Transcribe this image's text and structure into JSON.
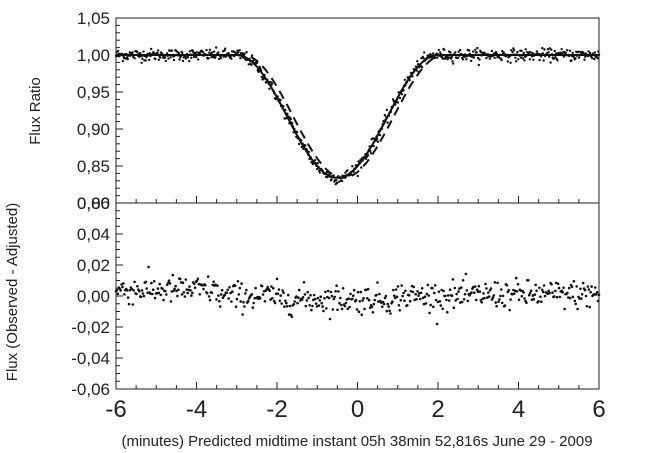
{
  "chart_data": [
    {
      "type": "scatter",
      "title": "",
      "ylabel": "Flux Ratio",
      "xlabel": "",
      "xlim": [
        -6,
        6
      ],
      "ylim": [
        0.8,
        1.05
      ],
      "y_ticks": [
        "0,80",
        "0,85",
        "0,90",
        "0,95",
        "1,00",
        "1,05"
      ],
      "y_tick_values": [
        0.8,
        0.85,
        0.9,
        0.95,
        1.0,
        1.05
      ],
      "grid": false,
      "transit_model": {
        "baseline": 1.0,
        "min_flux": 0.834,
        "center_minutes": -0.5,
        "ingress_start": -3.0,
        "egress_end": 2.0
      },
      "series": [
        {
          "style": "dots",
          "noise_sd": 0.004
        },
        {
          "style": "solid line",
          "shift_minutes": 0.0
        },
        {
          "style": "dashed line",
          "shift_minutes": 0.15
        }
      ]
    },
    {
      "type": "scatter",
      "title": "",
      "ylabel": "Flux (Observed - Adjusted)",
      "xlabel": "(minutes) Predicted midtime instant 05h 38min 52,816s June 29 - 2009",
      "xlim": [
        -6,
        6
      ],
      "ylim": [
        -0.06,
        0.06
      ],
      "x_ticks": [
        "-6",
        "-4",
        "-2",
        "0",
        "2",
        "4",
        "6"
      ],
      "x_tick_values": [
        -6,
        -4,
        -2,
        0,
        2,
        4,
        6
      ],
      "y_ticks": [
        "-0,06",
        "-0,04",
        "-0,02",
        "0,00",
        "0,02",
        "0,04",
        "0,06"
      ],
      "y_tick_values": [
        -0.06,
        -0.04,
        -0.02,
        0.0,
        0.02,
        0.04,
        0.06
      ],
      "grid": false,
      "residuals": {
        "segments": [
          {
            "from": -6.0,
            "to": -3.5,
            "mean": 0.004
          },
          {
            "from": -3.5,
            "to": -2.0,
            "mean": 0.0
          },
          {
            "from": -2.0,
            "to": 1.0,
            "mean": -0.002
          },
          {
            "from": 1.0,
            "to": 3.0,
            "mean": 0.0
          },
          {
            "from": 3.0,
            "to": 6.0,
            "mean": 0.001
          }
        ],
        "noise_sd": 0.0045
      }
    }
  ]
}
